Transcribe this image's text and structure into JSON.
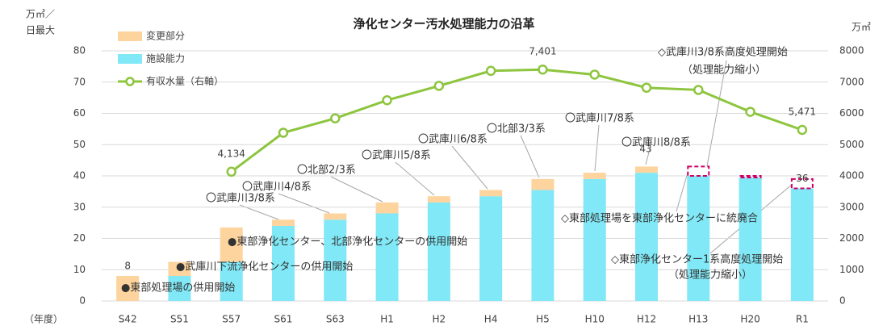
{
  "chart_data": {
    "type": "bar",
    "title": "浄化センター汚水処理能力の沿革",
    "y_axis_label": [
      "万㎥／",
      "日最大"
    ],
    "y2_axis_label": "万㎥",
    "x_axis_label": "（年度）",
    "categories": [
      "S42",
      "S51",
      "S57",
      "S61",
      "S63",
      "H1",
      "H2",
      "H4",
      "H5",
      "H10",
      "H12",
      "H13",
      "H20",
      "R1"
    ],
    "series": [
      {
        "name": "変更部分",
        "color": "#fdd49e",
        "values": [
          8,
          4.5,
          11,
          2,
          2,
          3.5,
          2,
          2,
          3.5,
          2,
          2,
          null,
          null,
          null
        ],
        "value_labels": [
          "8",
          null,
          null,
          null,
          null,
          null,
          null,
          null,
          null,
          null,
          null,
          null,
          null,
          null
        ]
      },
      {
        "name": "施設能力",
        "color": "#80e8f6",
        "values": [
          0,
          8,
          12.5,
          24,
          26,
          28,
          31.5,
          33.5,
          35.5,
          39,
          41,
          40,
          39.5,
          36
        ],
        "value_labels": [
          null,
          null,
          null,
          null,
          null,
          null,
          null,
          null,
          null,
          null,
          null,
          null,
          null,
          "36"
        ]
      },
      {
        "name": "有収水量（右軸）",
        "color": "#8dc53e",
        "type": "line",
        "axis": "y2",
        "values": [
          null,
          null,
          4134,
          5380,
          5840,
          6420,
          6880,
          7360,
          7401,
          7240,
          6820,
          6750,
          6050,
          5471
        ],
        "value_labels": [
          null,
          null,
          "4,134",
          null,
          null,
          null,
          null,
          null,
          "7,401",
          null,
          null,
          null,
          null,
          "5,471"
        ]
      }
    ],
    "reduced_values": [
      null,
      null,
      null,
      null,
      null,
      null,
      null,
      null,
      null,
      null,
      null,
      3,
      0.5,
      3
    ],
    "reduced_color": "#cc0066",
    "ylim": [
      0,
      80
    ],
    "yticks": [
      0,
      10,
      20,
      30,
      40,
      50,
      60,
      70,
      80
    ],
    "y2lim": [
      0,
      8000
    ],
    "y2ticks": [
      0,
      1000,
      2000,
      3000,
      4000,
      5000,
      6000,
      7000,
      8000
    ],
    "grid": true,
    "legend": "top-left",
    "annotations": [
      "43",
      "●東部処理場の供用開始",
      "●武庫川下流浄化センターの供用開始",
      "●東部浄化センター、北部浄化センターの供用開始",
      "〇武庫川3/8系",
      "〇武庫川4/8系",
      "〇北部2/3系",
      "〇武庫川5/8系",
      "〇武庫川6/8系",
      "〇北部3/3系",
      "〇武庫川7/8系",
      "〇武庫川8/8系",
      "◇武庫川3/8系高度処理開始",
      "（処理能力縮小）",
      "◇東部処理場を東部浄化センターに統廃合",
      "◇東部浄化センター1系高度処理開始",
      "（処理能力縮小）"
    ]
  }
}
